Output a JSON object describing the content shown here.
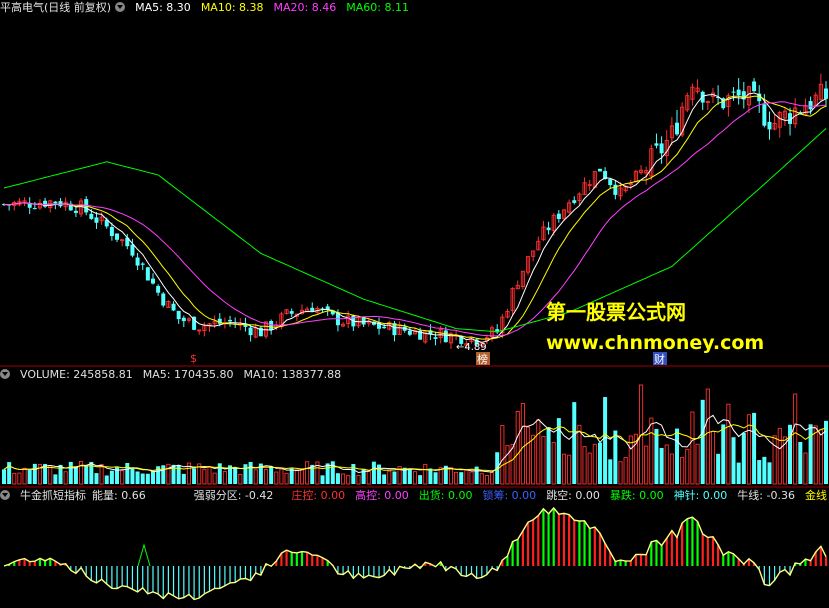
{
  "price_header": {
    "title": "平高电气(日线 前复权)",
    "ma5": "MA5: 8.30",
    "ma10": "MA10: 8.38",
    "ma20": "MA20: 8.46",
    "ma60": "MA60: 8.11"
  },
  "volume_header": {
    "volume": "VOLUME: 245858.81",
    "ma5": "MA5: 170435.80",
    "ma10": "MA10: 138377.88"
  },
  "indicator_header": {
    "name": "牛金抓短指标",
    "energy": "能量: 0.66",
    "strength": "强弱分区: -0.42",
    "control": "庄控: 0.00",
    "high_control": "高控: 0.00",
    "ship": "出货: 0.00",
    "lock": "锁筹: 0.00",
    "gap": "跳空: 0.00",
    "crash": "暴跌: 0.00",
    "needle": "神针: 0.00",
    "bull_line": "牛线: -0.36",
    "gold": "金线"
  },
  "annotations": {
    "low_price": "←4.89",
    "bang": "榜",
    "cai": "财",
    "s_mark": "$"
  },
  "watermark": {
    "line1": "第一股票公式网",
    "line2": "www.chnmoney.com"
  },
  "colors": {
    "up": "#ff3030",
    "down": "#54ffff",
    "ma5": "#ffffff",
    "ma10": "#ffff00",
    "ma20": "#ff40ff",
    "ma60": "#00ff00",
    "volume_up": "#ff3030",
    "volume_down": "#54ffff",
    "indicator_pos_red": "#ff2020",
    "indicator_pos_green": "#00ff00",
    "indicator_neg": "#54ffff"
  },
  "chart_data": [
    {
      "type": "candlestick",
      "title": "平高电气(日线 前复权)",
      "ylim": [
        4.6,
        9.8
      ],
      "ma_labels": [
        "MA5",
        "MA10",
        "MA20",
        "MA60"
      ],
      "ma_latest": [
        8.3,
        8.38,
        8.46,
        8.11
      ],
      "low_marker": 4.89,
      "close_path": [
        [
          0,
          6.95
        ],
        [
          5,
          6.97
        ],
        [
          10,
          7.0
        ],
        [
          15,
          6.9
        ],
        [
          20,
          6.6
        ],
        [
          25,
          6.25
        ],
        [
          30,
          5.6
        ],
        [
          34,
          5.2
        ],
        [
          38,
          5.1
        ],
        [
          44,
          5.15
        ],
        [
          50,
          5.0
        ],
        [
          55,
          5.25
        ],
        [
          60,
          5.4
        ],
        [
          64,
          5.2
        ],
        [
          70,
          5.1
        ],
        [
          76,
          5.05
        ],
        [
          80,
          5.0
        ],
        [
          86,
          4.95
        ],
        [
          92,
          4.9
        ],
        [
          96,
          5.0
        ],
        [
          100,
          5.8
        ],
        [
          104,
          6.4
        ],
        [
          110,
          7.0
        ],
        [
          116,
          7.5
        ],
        [
          120,
          7.1
        ],
        [
          126,
          7.6
        ],
        [
          130,
          8.0
        ],
        [
          134,
          8.9
        ],
        [
          138,
          8.5
        ],
        [
          144,
          8.6
        ],
        [
          150,
          8.2
        ],
        [
          156,
          8.5
        ],
        [
          160,
          8.6
        ]
      ],
      "ma60_path": [
        [
          0,
          7.2
        ],
        [
          20,
          7.6
        ],
        [
          30,
          7.4
        ],
        [
          50,
          6.2
        ],
        [
          70,
          5.5
        ],
        [
          88,
          5.05
        ],
        [
          96,
          5.0
        ],
        [
          110,
          5.3
        ],
        [
          130,
          6.0
        ],
        [
          150,
          7.4
        ],
        [
          160,
          8.11
        ]
      ]
    },
    {
      "type": "bar",
      "title": "VOLUME",
      "latest": 245858.81,
      "ma5_latest": 170435.8,
      "ma10_latest": 138377.88
    },
    {
      "type": "bar",
      "title": "牛金抓短指标",
      "values": {
        "能量": 0.66,
        "强弱分区": -0.42,
        "庄控": 0.0,
        "高控": 0.0,
        "出货": 0.0,
        "锁筹": 0.0,
        "跳空": 0.0,
        "暴跌": 0.0,
        "神针": 0.0,
        "牛线": -0.36
      }
    }
  ]
}
